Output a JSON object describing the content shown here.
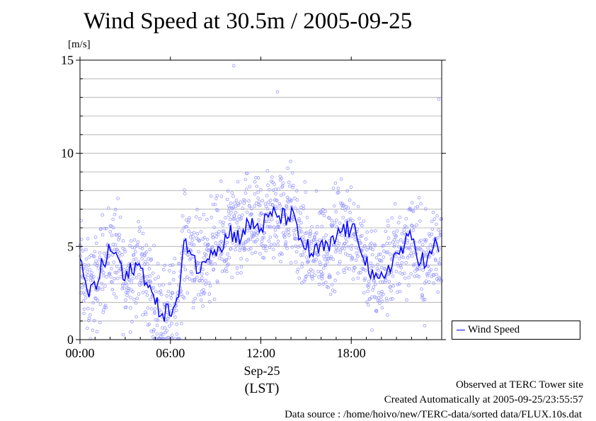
{
  "chart_data": {
    "type": "scatter",
    "title": "Wind Speed at 30.5m / 2005-09-25",
    "ylabel": "[m/s]",
    "xlabel": "Sep-25",
    "xlabel_sub": "(LST)",
    "xlim": [
      "00:00",
      "24:00"
    ],
    "ylim": [
      0,
      15
    ],
    "x_ticks": [
      "00:00",
      "06:00",
      "12:00",
      "18:00"
    ],
    "y_ticks": [
      "0",
      "5",
      "10",
      "15"
    ],
    "grid": true,
    "legend_position": "right",
    "series": [
      {
        "name": "Wind Speed",
        "color": "#0000ff",
        "style": "line",
        "x": [
          "00:00",
          "00:30",
          "01:00",
          "01:30",
          "02:00",
          "02:30",
          "03:00",
          "03:30",
          "04:00",
          "04:30",
          "05:00",
          "05:30",
          "06:00",
          "06:30",
          "07:00",
          "07:30",
          "08:00",
          "08:30",
          "09:00",
          "09:30",
          "10:00",
          "10:30",
          "11:00",
          "11:30",
          "12:00",
          "12:30",
          "13:00",
          "13:30",
          "14:00",
          "14:30",
          "15:00",
          "15:30",
          "16:00",
          "16:30",
          "17:00",
          "17:30",
          "18:00",
          "18:30",
          "19:00",
          "19:30",
          "20:00",
          "20:30",
          "21:00",
          "21:30",
          "22:00",
          "22:30",
          "23:00",
          "23:30"
        ],
        "values": [
          4.0,
          2.5,
          2.8,
          4.0,
          4.8,
          4.5,
          3.0,
          4.0,
          3.8,
          3.2,
          1.8,
          1.5,
          1.5,
          2.0,
          5.5,
          4.5,
          3.5,
          4.8,
          5.0,
          5.2,
          5.8,
          5.5,
          6.0,
          6.2,
          6.0,
          6.5,
          6.8,
          6.5,
          6.8,
          5.5,
          5.0,
          4.5,
          5.0,
          4.8,
          5.5,
          6.0,
          5.8,
          5.5,
          4.2,
          3.0,
          3.2,
          4.0,
          4.5,
          5.0,
          5.5,
          4.5,
          4.0,
          5.0
        ]
      },
      {
        "name": "",
        "color": "#9999ff",
        "style": "points",
        "x": [
          "00:00",
          "00:30",
          "01:00",
          "01:30",
          "02:00",
          "02:30",
          "03:00",
          "03:30",
          "04:00",
          "04:30",
          "05:00",
          "05:30",
          "06:00",
          "06:30",
          "07:00",
          "07:30",
          "08:00",
          "08:30",
          "09:00",
          "09:30",
          "10:00",
          "10:30",
          "11:00",
          "11:30",
          "12:00",
          "12:30",
          "13:00",
          "13:30",
          "14:00",
          "14:30",
          "15:00",
          "15:30",
          "16:00",
          "16:30",
          "17:00",
          "17:30",
          "18:00",
          "18:30",
          "19:00",
          "19:30",
          "20:00",
          "20:30",
          "21:00",
          "21:30",
          "22:00",
          "22:30",
          "23:00",
          "23:30"
        ],
        "values": [
          4.0,
          2.5,
          2.8,
          4.0,
          4.8,
          4.5,
          3.0,
          4.0,
          3.8,
          3.2,
          1.8,
          1.5,
          1.5,
          2.0,
          5.5,
          4.5,
          3.5,
          4.8,
          5.0,
          5.2,
          5.8,
          5.5,
          6.0,
          6.2,
          6.0,
          6.5,
          6.8,
          6.5,
          6.8,
          5.5,
          5.0,
          4.5,
          5.0,
          4.8,
          5.5,
          6.0,
          5.8,
          5.5,
          4.2,
          3.0,
          3.2,
          4.0,
          4.5,
          5.0,
          5.5,
          4.5,
          4.0,
          5.0
        ],
        "spread": 2.0,
        "peaks": [
          {
            "x": "10:12",
            "y": 14.7
          },
          {
            "x": "13:06",
            "y": 13.3
          },
          {
            "x": "23:48",
            "y": 12.9
          }
        ]
      }
    ]
  },
  "footer": {
    "site": "Observed at TERC Tower site",
    "created": "Created Automatically at 2005-09-25/23:55:57",
    "source": "Data source : /home/hoivo/new/TERC-data/sorted  data/FLUX.10s.dat"
  }
}
